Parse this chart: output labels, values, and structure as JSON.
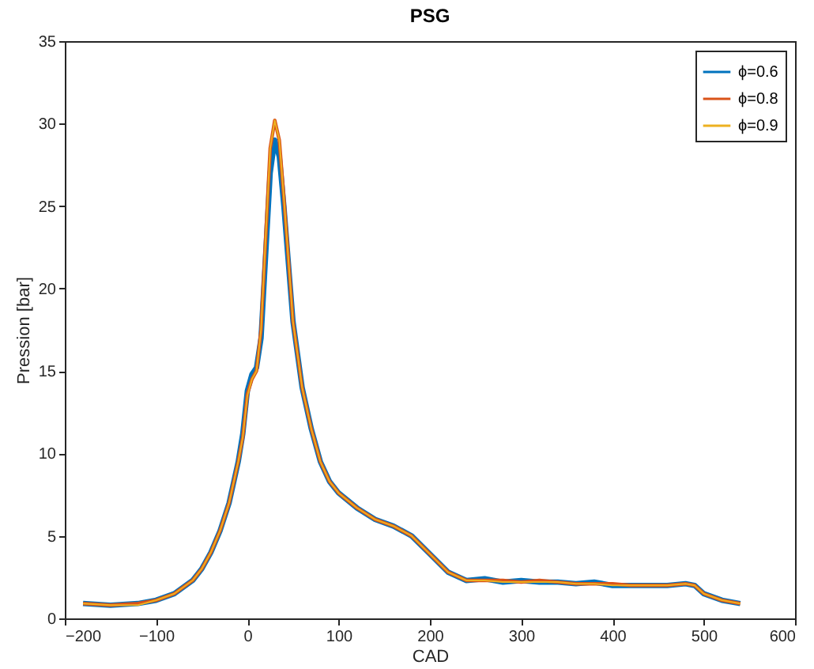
{
  "chart_data": {
    "type": "line",
    "title": "PSG",
    "xlabel": "CAD",
    "ylabel": "Pression [bar]",
    "x": [
      -180,
      -150,
      -120,
      -100,
      -80,
      -60,
      -50,
      -40,
      -30,
      -20,
      -10,
      -5,
      0,
      5,
      10,
      15,
      20,
      25,
      30,
      35,
      40,
      50,
      60,
      70,
      80,
      90,
      100,
      120,
      140,
      160,
      180,
      200,
      220,
      240,
      260,
      280,
      300,
      320,
      340,
      360,
      380,
      400,
      420,
      440,
      460,
      480,
      490,
      500,
      520,
      540
    ],
    "series": [
      {
        "name": "ϕ=0.6",
        "color": "#0072bd",
        "values": [
          0.9,
          0.8,
          0.9,
          1.1,
          1.5,
          2.3,
          3.0,
          4.0,
          5.3,
          7.0,
          9.5,
          11.2,
          13.8,
          14.8,
          15.2,
          17,
          22,
          27,
          29,
          28,
          25,
          18,
          14,
          11.5,
          9.5,
          8.3,
          7.6,
          6.7,
          6.0,
          5.6,
          5.0,
          3.9,
          2.8,
          2.3,
          2.4,
          2.2,
          2.3,
          2.2,
          2.2,
          2.1,
          2.2,
          2.0,
          2.0,
          2.0,
          2.0,
          2.1,
          2.0,
          1.5,
          1.1,
          0.9
        ]
      },
      {
        "name": "ϕ=0.8",
        "color": "#d95319",
        "values": [
          0.9,
          0.8,
          0.9,
          1.1,
          1.5,
          2.3,
          3.0,
          4.0,
          5.3,
          7.0,
          9.5,
          11.0,
          13.6,
          14.5,
          15.0,
          17.5,
          23,
          28.5,
          30.2,
          29,
          25.5,
          18,
          14,
          11.5,
          9.5,
          8.3,
          7.6,
          6.7,
          6.0,
          5.6,
          5.0,
          3.9,
          2.8,
          2.3,
          2.3,
          2.3,
          2.2,
          2.3,
          2.2,
          2.1,
          2.1,
          2.1,
          2.0,
          2.0,
          2.0,
          2.1,
          2.0,
          1.5,
          1.1,
          0.9
        ]
      },
      {
        "name": "ϕ=0.9",
        "color": "#edb120",
        "values": [
          0.9,
          0.8,
          0.8,
          1.1,
          1.5,
          2.3,
          3.0,
          4.0,
          5.3,
          7.0,
          9.5,
          11.0,
          13.5,
          14.5,
          15.0,
          17.5,
          23,
          28.5,
          30.2,
          29,
          25.5,
          18,
          14,
          11.5,
          9.5,
          8.3,
          7.6,
          6.7,
          6.0,
          5.6,
          5.0,
          3.9,
          2.8,
          2.3,
          2.3,
          2.2,
          2.2,
          2.2,
          2.2,
          2.1,
          2.1,
          2.0,
          2.0,
          2.0,
          2.0,
          2.1,
          2.0,
          1.5,
          1.1,
          0.9
        ]
      }
    ],
    "xlim": [
      -200,
      600
    ],
    "xticks": [
      -200,
      -100,
      0,
      100,
      200,
      300,
      400,
      500,
      600
    ],
    "ylim": [
      0,
      35
    ],
    "yticks": [
      0,
      5,
      10,
      15,
      20,
      25,
      30,
      35
    ],
    "legend": "top right"
  }
}
